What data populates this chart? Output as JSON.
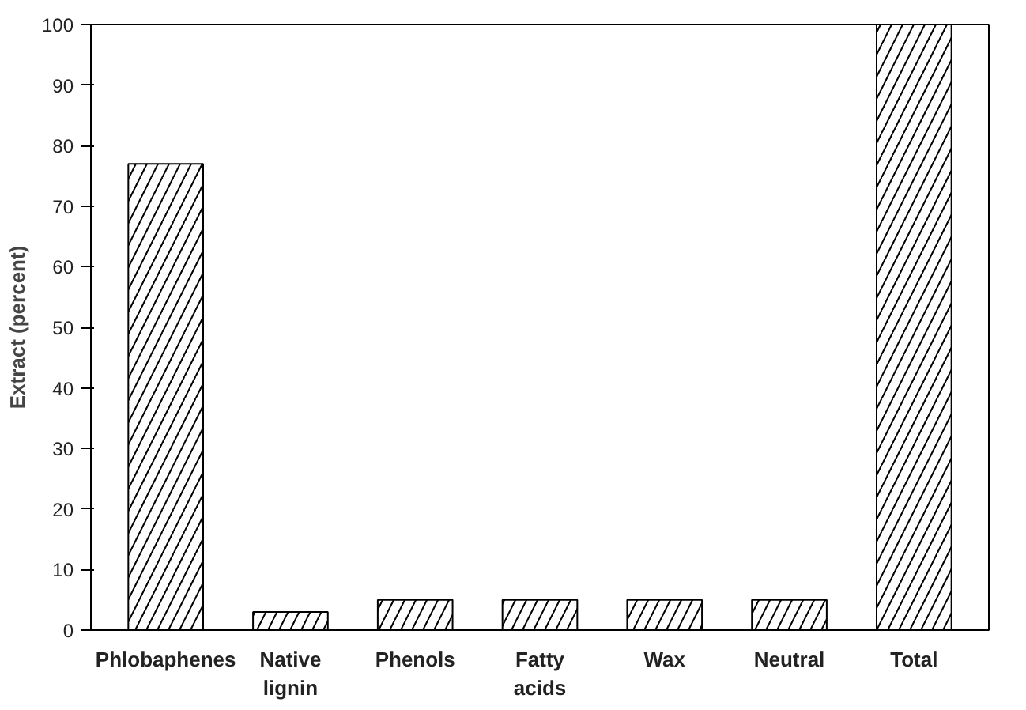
{
  "chart_data": {
    "type": "bar",
    "ylabel": "Extract (percent)",
    "categories": [
      "Phlobaphenes",
      "Native\nlignin",
      "Phenols",
      "Fatty\nacids",
      "Wax",
      "Neutral",
      "Total"
    ],
    "values": [
      77,
      3,
      5,
      5,
      5,
      5,
      100
    ],
    "color": "#ffffff",
    "ylim": [
      0,
      100
    ],
    "yticks": [
      0,
      10,
      20,
      30,
      40,
      50,
      60,
      70,
      80,
      90,
      100
    ],
    "grid": false
  }
}
